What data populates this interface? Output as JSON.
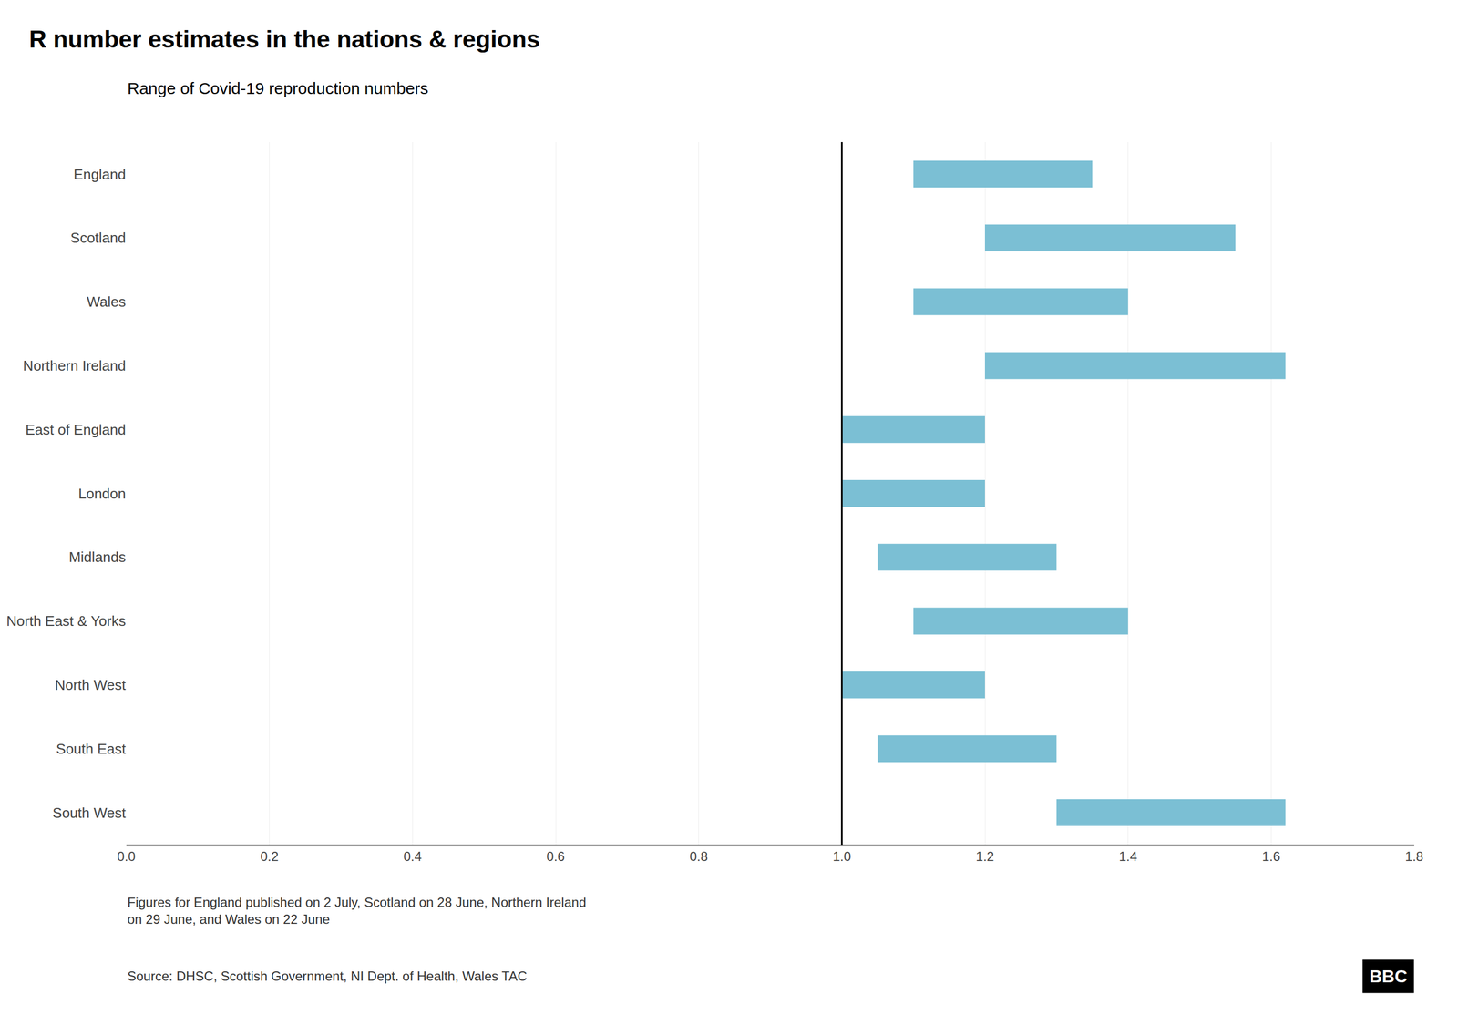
{
  "chart_data": {
    "type": "bar",
    "orientation": "horizontal",
    "title": "R number estimates in the nations & regions",
    "subtitle": "Range of Covid-19 reproduction numbers",
    "annotations": [
      "Figures for England published on 2 July, Scotland on 28 June, Northern Ireland\non 29 June, and Wales on 22 June",
      "Source: DHSC, Scottish Government, NI Dept. of Health, Wales TAC",
      "BBC"
    ],
    "categories": [
      "England",
      "Scotland",
      "Wales",
      "Northern Ireland",
      "East of England",
      "London",
      "Midlands",
      "North East & Yorks",
      "North West",
      "South East",
      "South West"
    ],
    "values": [
      [
        1.1,
        1.35
      ],
      [
        1.2,
        1.55
      ],
      [
        1.1,
        1.4
      ],
      [
        1.2,
        1.62
      ],
      [
        1.0,
        1.2
      ],
      [
        1.0,
        1.2
      ],
      [
        1.05,
        1.3
      ],
      [
        1.1,
        1.4
      ],
      [
        1.0,
        1.2
      ],
      [
        1.05,
        1.3
      ],
      [
        1.3,
        1.62
      ]
    ],
    "color": "#7bbfd4",
    "vline": 1.0,
    "xlim": [
      0.0,
      1.8
    ],
    "xticks": [
      {
        "value": 0.0,
        "label": "0.0"
      },
      0.2,
      0.4,
      0.6,
      0.8,
      {
        "value": 1.0,
        "label": "1.0"
      },
      1.2,
      1.4,
      1.6,
      1.8
    ],
    "grid": true
  }
}
